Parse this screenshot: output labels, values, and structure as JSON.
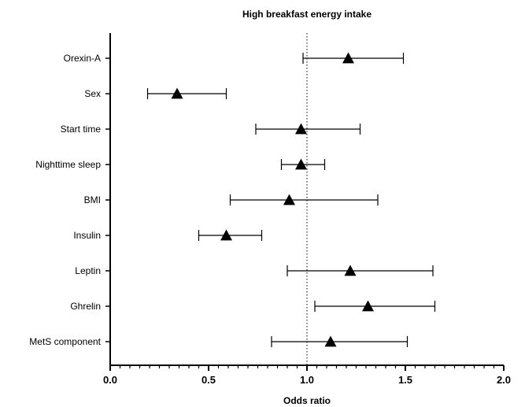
{
  "chart_data": {
    "type": "forest",
    "title": "High breakfast energy intake",
    "xlabel": "Odds ratio",
    "xlim": [
      0.0,
      2.0
    ],
    "xticks": [
      "0.0",
      "0.5",
      "1.0",
      "1.5",
      "2.0"
    ],
    "reference_line": 1.0,
    "marker": "triangle",
    "categories": [
      "Orexin-A",
      "Sex",
      "Start time",
      "Nighttime sleep",
      "BMI",
      "Insulin",
      "Leptin",
      "Ghrelin",
      "MetS component"
    ],
    "estimates": [
      1.21,
      0.34,
      0.97,
      0.97,
      0.91,
      0.59,
      1.22,
      1.31,
      1.12
    ],
    "ci_lower": [
      0.98,
      0.19,
      0.74,
      0.87,
      0.61,
      0.45,
      0.9,
      1.04,
      0.82
    ],
    "ci_upper": [
      1.49,
      0.59,
      1.27,
      1.09,
      1.36,
      0.77,
      1.64,
      1.65,
      1.51
    ]
  }
}
